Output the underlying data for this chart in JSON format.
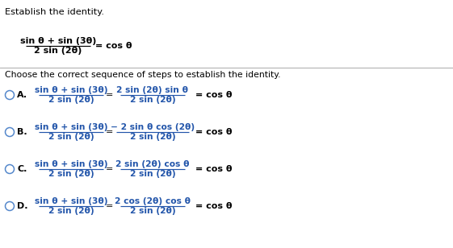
{
  "bg_color": "#ffffff",
  "title_text": "Establish the identity.",
  "header_formula_num": "sin θ + sin (3θ)",
  "header_formula_den": "2 sin (2θ)",
  "header_rhs": "= cos θ",
  "divider_question": "Choose the correct sequence of steps to establish the identity.",
  "options": [
    {
      "label": "A.",
      "lhs_num": "sin θ + sin (3θ)",
      "lhs_den": "2 sin (2θ)",
      "rhs_num": "2 sin (2θ) sin θ",
      "rhs_den": "2 sin (2θ)",
      "rhs_final": "= cos θ"
    },
    {
      "label": "B.",
      "lhs_num": "sin θ + sin (3θ)",
      "lhs_den": "2 sin (2θ)",
      "rhs_num": "− 2 sin θ cos (2θ)",
      "rhs_den": "2 sin (2θ)",
      "rhs_final": "= cos θ"
    },
    {
      "label": "C.",
      "lhs_num": "sin θ + sin (3θ)",
      "lhs_den": "2 sin (2θ)",
      "rhs_num": "2 sin (2θ) cos θ",
      "rhs_den": "2 sin (2θ)",
      "rhs_final": "= cos θ"
    },
    {
      "label": "D.",
      "lhs_num": "sin θ + sin (3θ)",
      "lhs_den": "2 sin (2θ)",
      "rhs_num": "2 cos (2θ) cos θ",
      "rhs_den": "2 sin (2θ)",
      "rhs_final": "= cos θ"
    }
  ],
  "text_color": "#000000",
  "blue_color": "#2255aa",
  "circle_color": "#5588cc",
  "label_color": "#000000"
}
